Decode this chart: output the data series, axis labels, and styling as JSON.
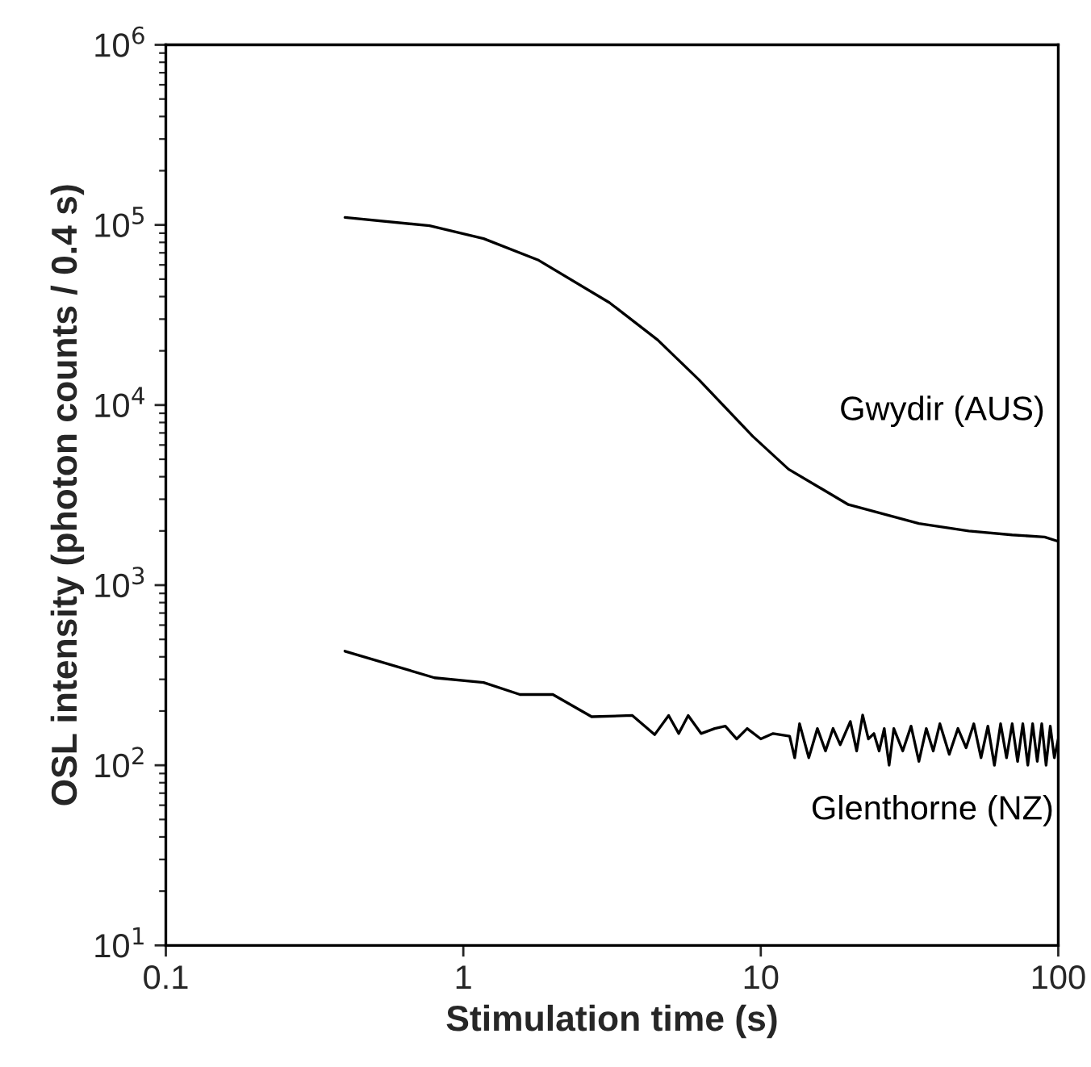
{
  "chart_data": {
    "type": "line",
    "xlabel": "Stimulation time (s)",
    "ylabel": "OSL intensity (photon counts / 0.4 s)",
    "log": "xy",
    "grid": false,
    "legend": false,
    "marker": "none",
    "line_style": "solid",
    "xlim": [
      0.1,
      100
    ],
    "xticks": [
      0.1,
      1,
      10,
      100
    ],
    "ylim": [
      10,
      1000000
    ],
    "yticks": [
      {
        "value": 10,
        "label": "10$^{1}$"
      },
      {
        "value": 100,
        "label": "10$^{2}$"
      },
      {
        "value": 1000,
        "label": "10$^{3}$"
      },
      {
        "value": 10000,
        "label": "10$^{4}$"
      },
      {
        "value": 100000,
        "label": "10$^{5}$"
      },
      {
        "value": 1000000,
        "label": "10$^{6}$"
      }
    ],
    "series": [
      {
        "name": "Gwydir (AUS)",
        "color": "#000000",
        "x": [
          0.4,
          0.77,
          1.17,
          1.78,
          3.1,
          4.5,
          6.2,
          9.4,
          12.4,
          19.7,
          34,
          50,
          70,
          90,
          100
        ],
        "values": [
          110000,
          99000,
          84000,
          64000,
          37000,
          23000,
          13800,
          6700,
          4400,
          2800,
          2200,
          2000,
          1900,
          1850,
          1750
        ]
      },
      {
        "name": "Glenthorne (NZ)",
        "color": "#000000",
        "x": [
          0.4,
          0.8,
          1.17,
          1.55,
          2.0,
          2.7,
          3.7,
          4.4,
          4.9,
          5.3,
          5.7,
          6.3,
          7.0,
          7.6,
          8.3,
          9.0,
          10,
          11,
          12.5,
          13,
          13.5,
          14.5,
          15.5,
          16.5,
          17.5,
          18.5,
          20,
          21,
          22,
          23,
          24,
          25,
          26,
          27,
          28,
          30,
          32,
          34,
          36,
          38,
          40,
          43,
          46,
          49,
          52,
          55,
          58,
          61,
          64,
          67,
          70,
          73,
          76,
          79,
          82,
          85,
          88,
          91,
          94,
          97,
          100
        ],
        "values": [
          430,
          306,
          288,
          247,
          247,
          186,
          189,
          148,
          189,
          150,
          189,
          150,
          160,
          165,
          140,
          160,
          140,
          150,
          145,
          110,
          170,
          110,
          160,
          120,
          160,
          130,
          175,
          120,
          190,
          140,
          150,
          120,
          160,
          100,
          160,
          120,
          165,
          105,
          160,
          120,
          170,
          115,
          160,
          125,
          170,
          110,
          165,
          100,
          170,
          110,
          170,
          105,
          170,
          100,
          170,
          105,
          170,
          100,
          165,
          110,
          140
        ]
      }
    ]
  }
}
